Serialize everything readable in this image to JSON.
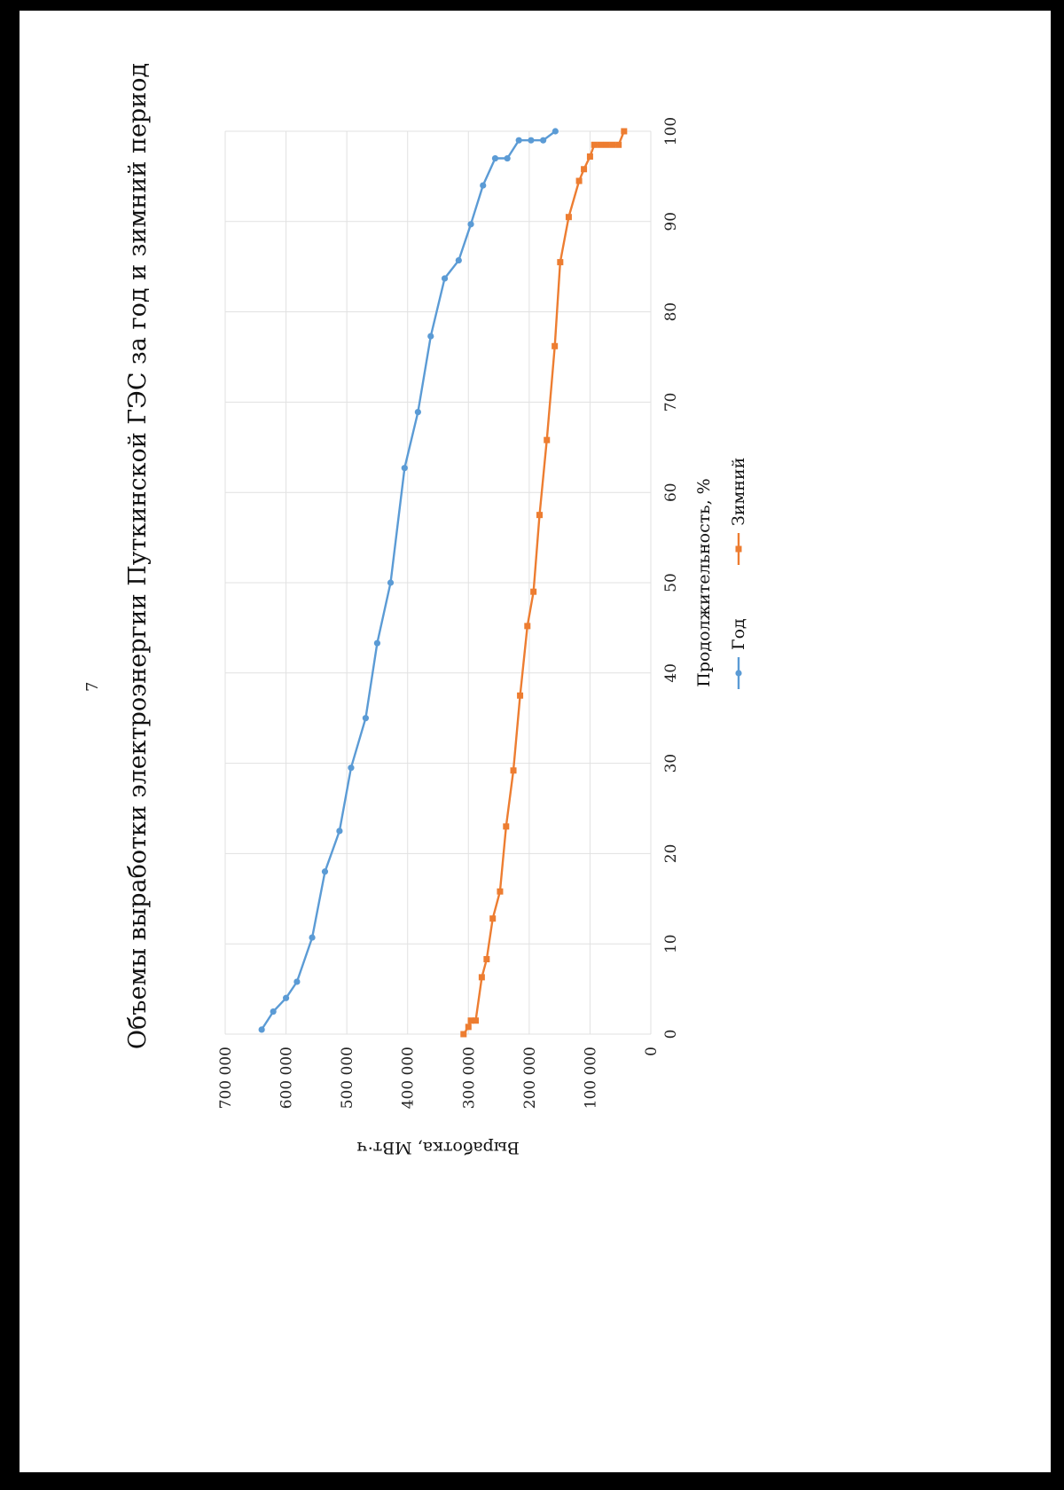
{
  "page": {
    "number": "7"
  },
  "chart_data": {
    "type": "line",
    "title": "Объемы выработки электроэнергии Путкинской ГЭС за год и зимний период",
    "xlabel": "Продолжительность, %",
    "ylabel": "Выработка, МВт·ч",
    "xlim": [
      0,
      100
    ],
    "ylim": [
      0,
      700000
    ],
    "x_ticks": [
      0,
      10,
      20,
      30,
      40,
      50,
      60,
      70,
      80,
      90,
      100
    ],
    "y_ticks": [
      0,
      100000,
      200000,
      300000,
      400000,
      500000,
      600000,
      700000
    ],
    "x_tick_labels": [
      "0",
      "10",
      "20",
      "30",
      "40",
      "50",
      "60",
      "70",
      "80",
      "90",
      "100"
    ],
    "y_tick_labels": [
      "0",
      "100 000",
      "200 000",
      "300 000",
      "400 000",
      "500 000",
      "600 000",
      "700 000"
    ],
    "grid": true,
    "legend_position": "bottom",
    "series": [
      {
        "name": "Год",
        "color": "#5b9bd5",
        "marker": "circle",
        "points": [
          [
            0.5,
            640000
          ],
          [
            2.5,
            621000
          ],
          [
            4,
            600000
          ],
          [
            5.8,
            582000
          ],
          [
            10.7,
            557000
          ],
          [
            18,
            536000
          ],
          [
            22.5,
            512000
          ],
          [
            29.5,
            493000
          ],
          [
            35,
            469000
          ],
          [
            43.3,
            450000
          ],
          [
            50,
            428000
          ],
          [
            62.7,
            405000
          ],
          [
            68.9,
            383000
          ],
          [
            77.3,
            362000
          ],
          [
            83.7,
            339000
          ],
          [
            85.7,
            316000
          ],
          [
            89.7,
            296000
          ],
          [
            94,
            276000
          ],
          [
            97,
            256000
          ],
          [
            97,
            236000
          ],
          [
            99,
            217000
          ],
          [
            99,
            197000
          ],
          [
            99,
            177000
          ],
          [
            100,
            157000
          ]
        ]
      },
      {
        "name": "Зимний",
        "color": "#ed7d31",
        "marker": "square",
        "points": [
          [
            0,
            308000
          ],
          [
            0.8,
            300000
          ],
          [
            1.5,
            296000
          ],
          [
            1.5,
            288000
          ],
          [
            6.3,
            278000
          ],
          [
            8.3,
            270000
          ],
          [
            12.8,
            260000
          ],
          [
            15.8,
            248000
          ],
          [
            23,
            238000
          ],
          [
            29.2,
            226000
          ],
          [
            37.5,
            215000
          ],
          [
            45.2,
            203000
          ],
          [
            49,
            193000
          ],
          [
            57.5,
            183000
          ],
          [
            65.8,
            171000
          ],
          [
            76.2,
            158000
          ],
          [
            85.5,
            149000
          ],
          [
            90.5,
            135000
          ],
          [
            94.5,
            118000
          ],
          [
            95.8,
            110000
          ],
          [
            97.2,
            100000
          ],
          [
            98.5,
            93000
          ],
          [
            98.5,
            83000
          ],
          [
            98.5,
            73000
          ],
          [
            98.5,
            63000
          ],
          [
            98.5,
            53000
          ],
          [
            100,
            44000
          ]
        ]
      }
    ]
  }
}
